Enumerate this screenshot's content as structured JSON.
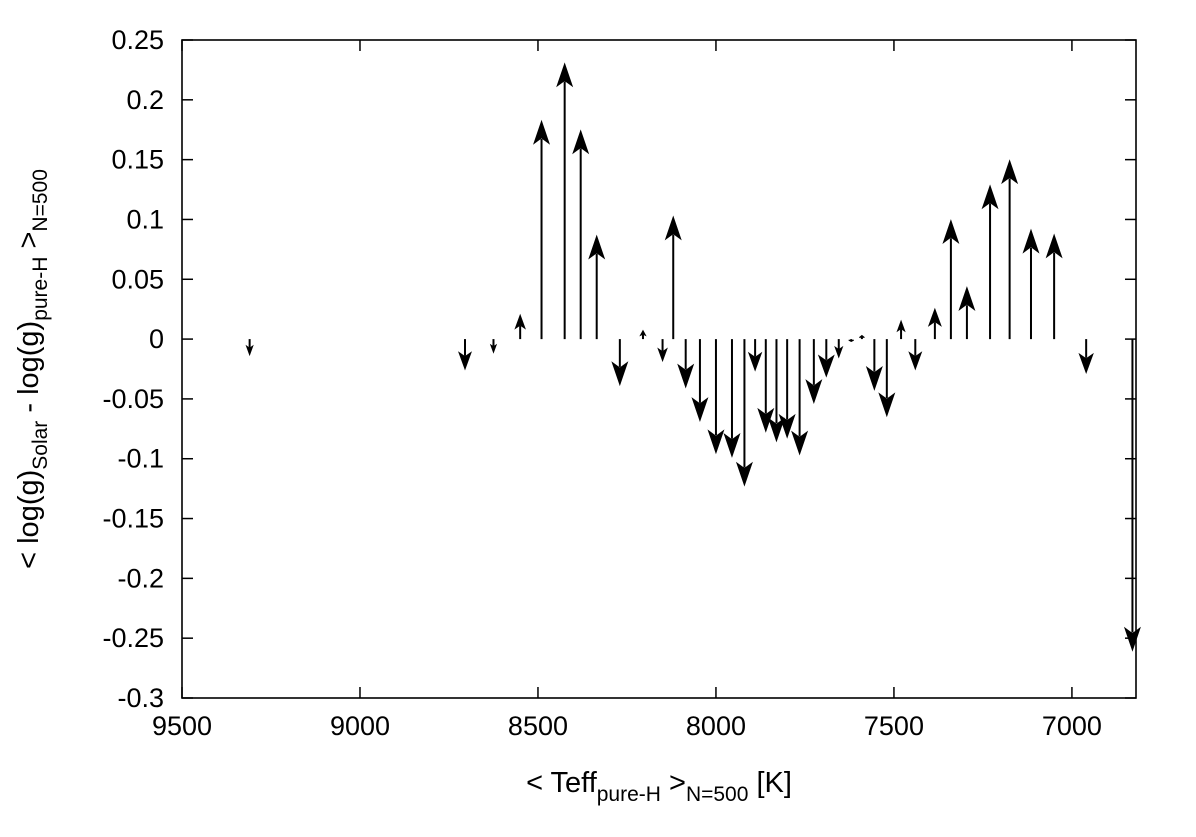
{
  "chart_data": {
    "type": "scatter",
    "style": "vector-arrows",
    "xlabel": {
      "main": "< Teff",
      "sub1": "pure-H",
      "mid": " >",
      "sub2": "N=500",
      "end": " [K]"
    },
    "ylabel": {
      "main": "< log(g)",
      "sub1": "Solar",
      "mid": " - log(g)",
      "sub2": "pure-H",
      "mid2": " >",
      "sub3": "N=500"
    },
    "xlim": [
      9500,
      6820
    ],
    "x_reversed": true,
    "ylim": [
      -0.3,
      0.25
    ],
    "xticks": [
      9500,
      9000,
      8500,
      8000,
      7500,
      7000
    ],
    "xtick_labels": [
      "9500",
      "9000",
      "8500",
      "8000",
      "7500",
      "7000"
    ],
    "yticks": [
      0.25,
      0.2,
      0.15,
      0.1,
      0.05,
      0,
      -0.05,
      -0.1,
      -0.15,
      -0.2,
      -0.25,
      -0.3
    ],
    "ytick_labels": [
      "0.25",
      "0.2",
      "0.15",
      "0.1",
      "0.05",
      "0",
      "-0.05",
      "-0.1",
      "-0.15",
      "-0.2",
      "-0.25",
      "-0.3"
    ],
    "grid": false,
    "arrow_color": "#000000",
    "points": [
      {
        "x": 9310,
        "dy": -0.013
      },
      {
        "x": 8705,
        "dy": -0.025
      },
      {
        "x": 8625,
        "dy": -0.011
      },
      {
        "x": 8550,
        "dy": 0.02
      },
      {
        "x": 8490,
        "dy": 0.182
      },
      {
        "x": 8425,
        "dy": 0.23
      },
      {
        "x": 8380,
        "dy": 0.174
      },
      {
        "x": 8335,
        "dy": 0.086
      },
      {
        "x": 8205,
        "dy": 0.007
      },
      {
        "x": 8270,
        "dy": -0.038
      },
      {
        "x": 8150,
        "dy": -0.018
      },
      {
        "x": 8120,
        "dy": 0.102
      },
      {
        "x": 8085,
        "dy": -0.04
      },
      {
        "x": 8045,
        "dy": -0.068
      },
      {
        "x": 8000,
        "dy": -0.095
      },
      {
        "x": 7955,
        "dy": -0.098
      },
      {
        "x": 7920,
        "dy": -0.122
      },
      {
        "x": 7890,
        "dy": -0.026
      },
      {
        "x": 7860,
        "dy": -0.077
      },
      {
        "x": 7830,
        "dy": -0.085
      },
      {
        "x": 7800,
        "dy": -0.082
      },
      {
        "x": 7765,
        "dy": -0.096
      },
      {
        "x": 7725,
        "dy": -0.053
      },
      {
        "x": 7690,
        "dy": -0.031
      },
      {
        "x": 7655,
        "dy": -0.015
      },
      {
        "x": 7620,
        "dy": -0.002
      },
      {
        "x": 7590,
        "dy": 0.003
      },
      {
        "x": 7555,
        "dy": -0.042
      },
      {
        "x": 7520,
        "dy": -0.064
      },
      {
        "x": 7480,
        "dy": 0.015
      },
      {
        "x": 7440,
        "dy": -0.025
      },
      {
        "x": 7385,
        "dy": 0.025
      },
      {
        "x": 7340,
        "dy": 0.099
      },
      {
        "x": 7295,
        "dy": 0.043
      },
      {
        "x": 7230,
        "dy": 0.128
      },
      {
        "x": 7175,
        "dy": 0.149
      },
      {
        "x": 7115,
        "dy": 0.091
      },
      {
        "x": 7050,
        "dy": 0.087
      },
      {
        "x": 6960,
        "dy": -0.028
      },
      {
        "x": 6830,
        "dy": -0.26
      }
    ]
  }
}
